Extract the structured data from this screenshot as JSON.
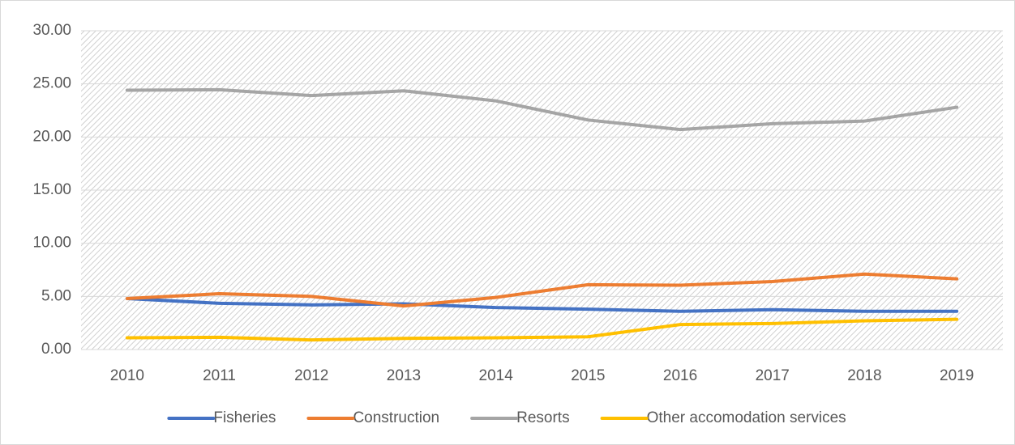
{
  "chart_data": {
    "type": "line",
    "categories": [
      "2010",
      "2011",
      "2012",
      "2013",
      "2014",
      "2015",
      "2016",
      "2017",
      "2018",
      "2019"
    ],
    "series": [
      {
        "name": "Fisheries",
        "color": "#4472c4",
        "values": [
          4.8,
          4.35,
          4.2,
          4.3,
          3.95,
          3.8,
          3.6,
          3.75,
          3.6,
          3.6
        ]
      },
      {
        "name": "Construction",
        "color": "#ed7d31",
        "values": [
          4.8,
          5.25,
          5.0,
          4.1,
          4.9,
          6.1,
          6.05,
          6.4,
          7.1,
          6.65
        ]
      },
      {
        "name": "Resorts",
        "color": "#a5a5a5",
        "values": [
          24.4,
          24.45,
          23.9,
          24.35,
          23.4,
          21.6,
          20.7,
          21.25,
          21.5,
          22.8
        ]
      },
      {
        "name": "Other accomodation services",
        "color": "#ffc000",
        "values": [
          1.1,
          1.15,
          0.9,
          1.05,
          1.1,
          1.2,
          2.35,
          2.45,
          2.7,
          2.85
        ]
      }
    ],
    "ylim": [
      0,
      30
    ],
    "yticks": [
      {
        "value": 0,
        "label": "0.00"
      },
      {
        "value": 5,
        "label": "5.00"
      },
      {
        "value": 10,
        "label": "10.00"
      },
      {
        "value": 15,
        "label": "15.00"
      },
      {
        "value": 20,
        "label": "20.00"
      },
      {
        "value": 25,
        "label": "25.00"
      },
      {
        "value": 30,
        "label": "30.00"
      }
    ],
    "grid": true,
    "legend": "bottom"
  }
}
